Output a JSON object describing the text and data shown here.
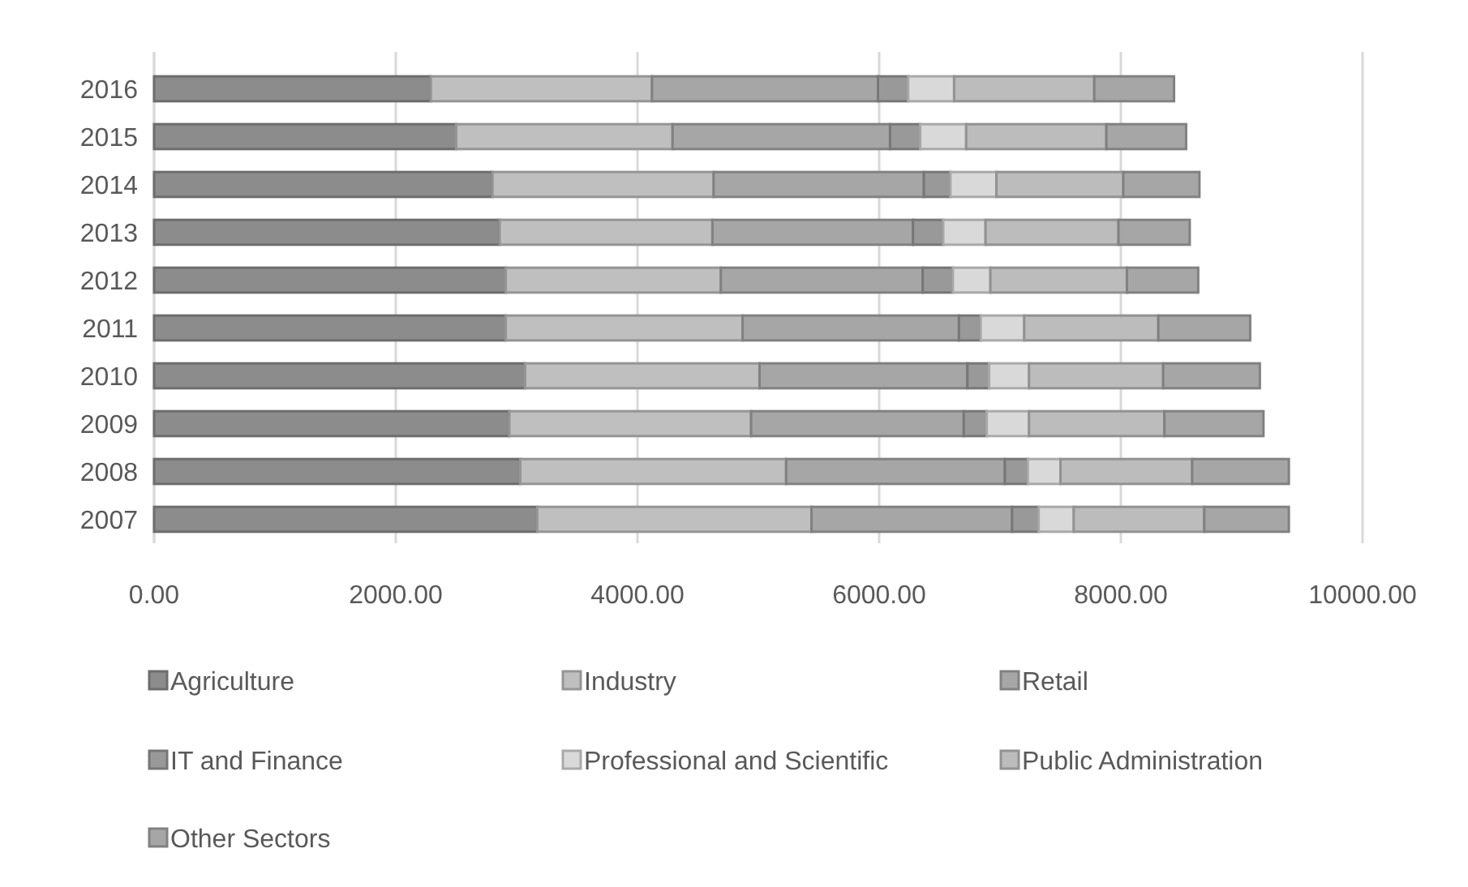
{
  "chart_data": {
    "type": "bar",
    "orientation": "horizontal",
    "stacked": true,
    "categories": [
      "2016",
      "2015",
      "2014",
      "2013",
      "2012",
      "2011",
      "2010",
      "2009",
      "2008",
      "2007"
    ],
    "xlim": [
      0,
      10000
    ],
    "xticks": [
      {
        "value": 0,
        "label": "0.00"
      },
      {
        "value": 2000,
        "label": "2000.00"
      },
      {
        "value": 4000,
        "label": "4000.00"
      },
      {
        "value": 6000,
        "label": "6000.00"
      },
      {
        "value": 8000,
        "label": "8000.00"
      },
      {
        "value": 10000,
        "label": "10000.00"
      }
    ],
    "grid": "x",
    "legend": "bottom",
    "series": [
      {
        "name": "Agriculture",
        "color": "#8c8c8c",
        "values": [
          2290,
          2500,
          2800,
          2860,
          2910,
          2910,
          3070,
          2940,
          3030,
          3170
        ]
      },
      {
        "name": "Industry",
        "color": "#bfbfbf",
        "values": [
          1830,
          1790,
          1830,
          1760,
          1780,
          1960,
          1940,
          2000,
          2200,
          2270
        ]
      },
      {
        "name": "Retail",
        "color": "#a6a6a6",
        "values": [
          1870,
          1800,
          1740,
          1660,
          1670,
          1790,
          1720,
          1760,
          1810,
          1660
        ]
      },
      {
        "name": "IT and Finance",
        "color": "#999999",
        "values": [
          250,
          250,
          220,
          250,
          250,
          180,
          180,
          190,
          190,
          220
        ]
      },
      {
        "name": "Professional and Scientific",
        "color": "#d9d9d9",
        "values": [
          380,
          380,
          380,
          350,
          310,
          360,
          330,
          350,
          270,
          290
        ]
      },
      {
        "name": "Public Administration",
        "color": "#bcbcbc",
        "values": [
          1160,
          1160,
          1050,
          1100,
          1130,
          1110,
          1110,
          1120,
          1090,
          1080
        ]
      },
      {
        "name": "Other Sectors",
        "color": "#a6a6a6",
        "values": [
          660,
          660,
          630,
          590,
          590,
          760,
          800,
          820,
          800,
          700
        ]
      }
    ]
  }
}
